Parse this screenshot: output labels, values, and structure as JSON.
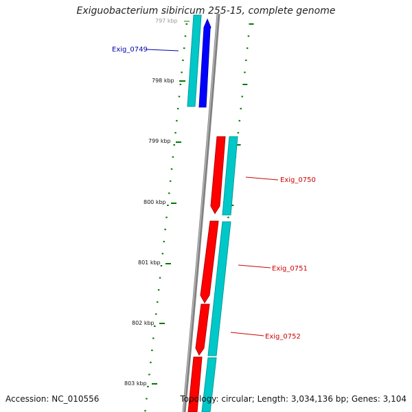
{
  "header": {
    "title": "Exiguobacterium sibiricum 255-15, complete genome"
  },
  "footer": {
    "accession": "Accession: NC_010556",
    "topology": "Topology: circular; Length: 3,034,136 bp; Genes: 3,104"
  },
  "colors": {
    "backbone": "#808080",
    "forward_gene": "#ff0000",
    "reverse_gene": "#0000ff",
    "cds": "#00c8c8",
    "tick": "#007700",
    "label_reverse": "#0000aa",
    "label_forward": "#cc0000"
  },
  "scale_labels": [
    "797 kbp",
    "798 kbp",
    "799 kbp",
    "800 kbp",
    "801 kbp",
    "802 kbp",
    "803 kbp"
  ],
  "genes": [
    {
      "label": "Exig_0749",
      "strand": "reverse"
    },
    {
      "label": "Exig_0750",
      "strand": "forward"
    },
    {
      "label": "Exig_0751",
      "strand": "forward"
    },
    {
      "label": "Exig_0752",
      "strand": "forward"
    }
  ]
}
